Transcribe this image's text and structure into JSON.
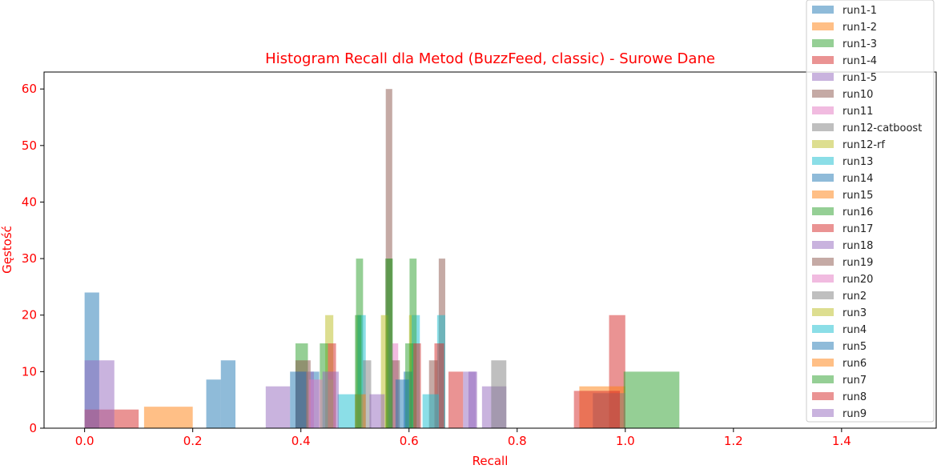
{
  "chart_data": {
    "type": "bar",
    "title": "Histogram Recall dla Metod (BuzzFeed, classic) - Surowe Dane",
    "xlabel": "Recall",
    "ylabel": "Gęstość",
    "xlim": [
      -0.075,
      1.575
    ],
    "ylim": [
      0,
      63
    ],
    "xticks": [
      0.0,
      0.2,
      0.4,
      0.6,
      0.8,
      1.0,
      1.2,
      1.4
    ],
    "xtick_labels": [
      "0.0",
      "0.2",
      "0.4",
      "0.6",
      "0.8",
      "1.0",
      "1.2",
      "1.4"
    ],
    "yticks": [
      0,
      10,
      20,
      30,
      40,
      50,
      60
    ],
    "ytick_labels": [
      "0",
      "10",
      "20",
      "30",
      "40",
      "50",
      "60"
    ],
    "grid": false,
    "legend_position": "top-right",
    "text_color": "#ff0000",
    "series": [
      {
        "name": "run1-1",
        "color": "#1f77b4",
        "bins": [
          {
            "x0": 0.0,
            "x1": 0.027,
            "h": 24
          },
          {
            "x0": 0.225,
            "x1": 0.252,
            "h": 8.6
          },
          {
            "x0": 0.252,
            "x1": 0.279,
            "h": 12
          }
        ]
      },
      {
        "name": "run1-2",
        "color": "#ff7f0e",
        "bins": [
          {
            "x0": 0.11,
            "x1": 0.2,
            "h": 3.8
          }
        ]
      },
      {
        "name": "run1-3",
        "color": "#2ca02c",
        "bins": [
          {
            "x0": 0.39,
            "x1": 0.413,
            "h": 15
          },
          {
            "x0": 0.502,
            "x1": 0.515,
            "h": 30
          },
          {
            "x0": 0.556,
            "x1": 0.569,
            "h": 30
          },
          {
            "x0": 0.601,
            "x1": 0.614,
            "h": 30
          }
        ]
      },
      {
        "name": "run1-4",
        "color": "#d62728",
        "bins": [
          {
            "x0": 0.0,
            "x1": 0.055,
            "h": 3.3
          },
          {
            "x0": 0.055,
            "x1": 0.1,
            "h": 3.3
          },
          {
            "x0": 0.97,
            "x1": 1.0,
            "h": 20
          }
        ]
      },
      {
        "name": "run1-5",
        "color": "#9467bd",
        "bins": [
          {
            "x0": 0.0,
            "x1": 0.027,
            "h": 12
          },
          {
            "x0": 0.027,
            "x1": 0.055,
            "h": 12
          },
          {
            "x0": 0.335,
            "x1": 0.38,
            "h": 7.4
          },
          {
            "x0": 0.735,
            "x1": 0.78,
            "h": 7.4
          }
        ]
      },
      {
        "name": "run10",
        "color": "#8c564b",
        "bins": [
          {
            "x0": 0.557,
            "x1": 0.569,
            "h": 60
          },
          {
            "x0": 0.655,
            "x1": 0.667,
            "h": 30
          }
        ]
      },
      {
        "name": "run11",
        "color": "#e377c2",
        "bins": [
          {
            "x0": 0.568,
            "x1": 0.58,
            "h": 15
          }
        ]
      },
      {
        "name": "run12-catboost",
        "color": "#7f7f7f",
        "bins": [
          {
            "x0": 0.752,
            "x1": 0.78,
            "h": 12
          }
        ]
      },
      {
        "name": "run12-rf",
        "color": "#bcbd22",
        "bins": [
          {
            "x0": 0.445,
            "x1": 0.46,
            "h": 20
          },
          {
            "x0": 0.548,
            "x1": 0.562,
            "h": 20
          },
          {
            "x0": 0.6,
            "x1": 0.614,
            "h": 20
          }
        ]
      },
      {
        "name": "run13",
        "color": "#17becf",
        "bins": [
          {
            "x0": 0.505,
            "x1": 0.52,
            "h": 20
          },
          {
            "x0": 0.605,
            "x1": 0.62,
            "h": 20
          },
          {
            "x0": 0.652,
            "x1": 0.667,
            "h": 20
          }
        ]
      },
      {
        "name": "run14",
        "color": "#1f77b4",
        "bins": [
          {
            "x0": 0.418,
            "x1": 0.434,
            "h": 10
          },
          {
            "x0": 0.59,
            "x1": 0.606,
            "h": 10
          }
        ]
      },
      {
        "name": "run15",
        "color": "#ff7f0e",
        "bins": [
          {
            "x0": 0.915,
            "x1": 1.0,
            "h": 7.4
          }
        ]
      },
      {
        "name": "run16",
        "color": "#2ca02c",
        "bins": [
          {
            "x0": 0.435,
            "x1": 0.45,
            "h": 15
          },
          {
            "x0": 0.593,
            "x1": 0.608,
            "h": 15
          },
          {
            "x0": 0.997,
            "x1": 1.1,
            "h": 10
          }
        ]
      },
      {
        "name": "run17",
        "color": "#d62728",
        "bins": [
          {
            "x0": 0.45,
            "x1": 0.465,
            "h": 15
          },
          {
            "x0": 0.608,
            "x1": 0.622,
            "h": 15
          },
          {
            "x0": 0.647,
            "x1": 0.665,
            "h": 15
          }
        ]
      },
      {
        "name": "run18",
        "color": "#9467bd",
        "bins": [
          {
            "x0": 0.39,
            "x1": 0.424,
            "h": 10
          },
          {
            "x0": 0.7,
            "x1": 0.724,
            "h": 10
          }
        ]
      },
      {
        "name": "run19",
        "color": "#8c564b",
        "bins": [
          {
            "x0": 0.39,
            "x1": 0.418,
            "h": 12
          },
          {
            "x0": 0.568,
            "x1": 0.583,
            "h": 12
          },
          {
            "x0": 0.637,
            "x1": 0.653,
            "h": 12
          }
        ]
      },
      {
        "name": "run20",
        "color": "#e377c2",
        "bins": [
          {
            "x0": 0.415,
            "x1": 0.44,
            "h": 8.6
          }
        ]
      },
      {
        "name": "run2",
        "color": "#7f7f7f",
        "bins": [
          {
            "x0": 0.515,
            "x1": 0.53,
            "h": 12
          },
          {
            "x0": 0.94,
            "x1": 1.0,
            "h": 6.2
          }
        ]
      },
      {
        "name": "run3",
        "color": "#bcbd22",
        "bins": [
          {
            "x0": 0.45,
            "x1": 0.46,
            "h": 8.6
          }
        ]
      },
      {
        "name": "run4",
        "color": "#17becf",
        "bins": [
          {
            "x0": 0.468,
            "x1": 0.515,
            "h": 6
          },
          {
            "x0": 0.625,
            "x1": 0.655,
            "h": 6
          }
        ]
      },
      {
        "name": "run5",
        "color": "#1f77b4",
        "bins": [
          {
            "x0": 0.38,
            "x1": 0.41,
            "h": 10
          },
          {
            "x0": 0.575,
            "x1": 0.6,
            "h": 8.6
          }
        ]
      },
      {
        "name": "run6",
        "color": "#ff7f0e",
        "bins": [
          {
            "x0": 0.5,
            "x1": 0.52,
            "h": 6
          }
        ]
      },
      {
        "name": "run7",
        "color": "#2ca02c",
        "bins": [
          {
            "x0": 0.5,
            "x1": 0.512,
            "h": 20
          },
          {
            "x0": 0.558,
            "x1": 0.57,
            "h": 30
          }
        ]
      },
      {
        "name": "run8",
        "color": "#d62728",
        "bins": [
          {
            "x0": 0.673,
            "x1": 0.7,
            "h": 10
          },
          {
            "x0": 0.905,
            "x1": 0.99,
            "h": 6.6
          }
        ]
      },
      {
        "name": "run9",
        "color": "#9467bd",
        "bins": [
          {
            "x0": 0.44,
            "x1": 0.47,
            "h": 10
          },
          {
            "x0": 0.527,
            "x1": 0.555,
            "h": 6
          },
          {
            "x0": 0.71,
            "x1": 0.726,
            "h": 10
          }
        ]
      }
    ]
  }
}
